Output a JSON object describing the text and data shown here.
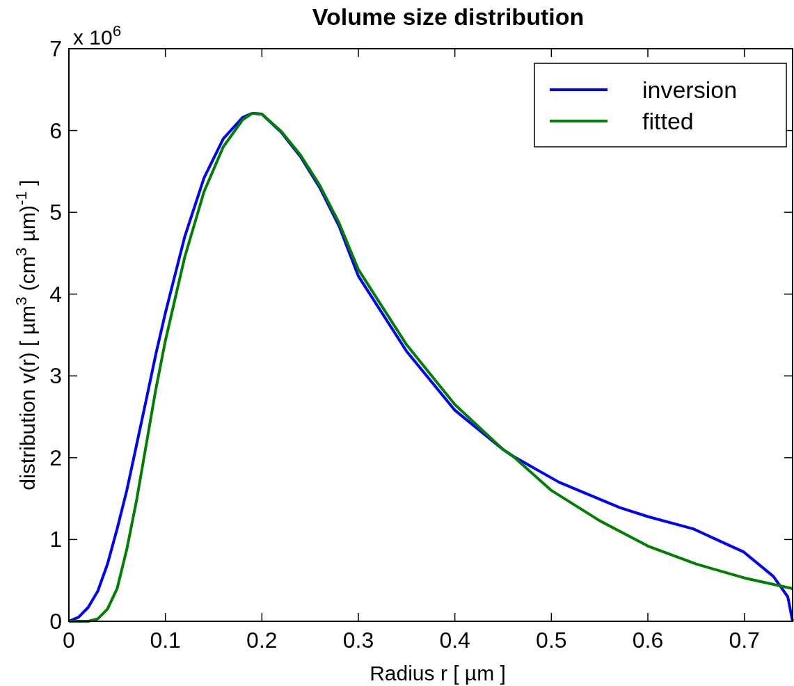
{
  "chart_data": {
    "type": "line",
    "title": "Volume size distribution",
    "xlabel": "Radius r   [ µm ]",
    "ylabel": "distribution v(r)   [ µm$^{3}$ (cm$^{3}$ µm)$^{-1}$ ]",
    "annotations": [
      "x 10$^{6}$"
    ],
    "xlim": [
      0,
      0.75
    ],
    "xticks": [
      0,
      0.1,
      0.2,
      0.3,
      0.4,
      0.5,
      0.6,
      0.7
    ],
    "ylim": [
      0,
      7
    ],
    "yticks": [
      0,
      1,
      2,
      3,
      4,
      5,
      6,
      7
    ],
    "grid": false,
    "legend": "top right",
    "line_style": "solid",
    "series": [
      {
        "name": "inversion",
        "color": "#0000ff",
        "x": [
          0,
          0.01,
          0.02,
          0.03,
          0.04,
          0.05,
          0.06,
          0.07,
          0.08,
          0.09,
          0.1,
          0.12,
          0.14,
          0.16,
          0.18,
          0.19,
          0.2,
          0.22,
          0.24,
          0.26,
          0.28,
          0.3,
          0.35,
          0.4,
          0.45,
          0.46,
          0.508,
          0.571,
          0.6,
          0.647,
          0.699,
          0.73,
          0.745,
          0.75
        ],
        "values": [
          0,
          0.05,
          0.17,
          0.37,
          0.7,
          1.13,
          1.6,
          2.15,
          2.7,
          3.26,
          3.77,
          4.7,
          5.42,
          5.9,
          6.16,
          6.21,
          6.2,
          5.98,
          5.68,
          5.3,
          4.83,
          4.22,
          3.3,
          2.58,
          2.1,
          2.02,
          1.7,
          1.39,
          1.28,
          1.13,
          0.85,
          0.55,
          0.3,
          0
        ]
      },
      {
        "name": "fitted",
        "color": "#008000",
        "x": [
          0,
          0.02,
          0.03,
          0.04,
          0.05,
          0.06,
          0.07,
          0.08,
          0.09,
          0.1,
          0.12,
          0.14,
          0.16,
          0.18,
          0.19,
          0.2,
          0.22,
          0.24,
          0.26,
          0.28,
          0.3,
          0.35,
          0.4,
          0.45,
          0.46,
          0.5,
          0.55,
          0.6,
          0.65,
          0.7,
          0.75
        ],
        "values": [
          0,
          0,
          0.03,
          0.15,
          0.4,
          0.88,
          1.47,
          2.15,
          2.83,
          3.43,
          4.45,
          5.25,
          5.8,
          6.13,
          6.21,
          6.2,
          5.99,
          5.7,
          5.33,
          4.87,
          4.3,
          3.38,
          2.65,
          2.1,
          2.02,
          1.6,
          1.23,
          0.92,
          0.7,
          0.53,
          0.4
        ]
      }
    ]
  }
}
